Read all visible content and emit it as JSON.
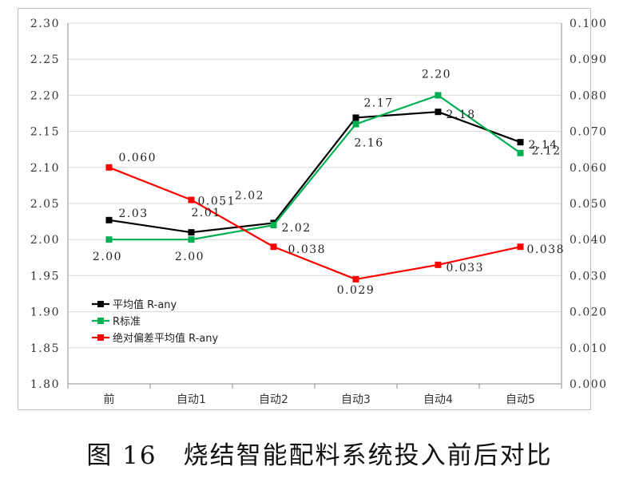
{
  "caption": "图 16　烧结智能配料系统投入前后对比",
  "chart_data": {
    "type": "line",
    "categories": [
      "前",
      "自动1",
      "自动2",
      "自动3",
      "自动4",
      "自动5"
    ],
    "y_left": {
      "min": 1.8,
      "max": 2.3,
      "step": 0.05,
      "decimals": 2,
      "ticks": [
        "1.80",
        "1.85",
        "1.90",
        "1.95",
        "2.00",
        "2.05",
        "2.10",
        "2.15",
        "2.20",
        "2.25",
        "2.30"
      ]
    },
    "y_right": {
      "min": 0.0,
      "max": 0.1,
      "step": 0.01,
      "decimals": 3,
      "ticks": [
        "0.000",
        "0.010",
        "0.020",
        "0.030",
        "0.040",
        "0.050",
        "0.060",
        "0.070",
        "0.080",
        "0.090",
        "0.100"
      ]
    },
    "grid": "horizontal",
    "legend_position": "bottom-left",
    "series": [
      {
        "name": "平均值 R-any",
        "axis": "left",
        "color": "#000000",
        "values": [
          2.027,
          2.01,
          2.023,
          2.169,
          2.177,
          2.135
        ],
        "labels": [
          "2.03",
          "2.01",
          "2.02",
          "2.17",
          "2.18",
          "2.14"
        ]
      },
      {
        "name": "R标准",
        "axis": "left",
        "color": "#00b050",
        "values": [
          2.0,
          2.0,
          2.02,
          2.16,
          2.2,
          2.12
        ],
        "labels": [
          "2.00",
          "2.00",
          "2.02",
          "2.16",
          "2.20",
          "2.12"
        ]
      },
      {
        "name": "绝对偏差平均值 R-any",
        "axis": "right",
        "color": "#ff0000",
        "values": [
          0.06,
          0.051,
          0.038,
          0.029,
          0.033,
          0.038
        ],
        "labels": [
          "0.060",
          "0.051",
          "0.038",
          "0.029",
          "0.033",
          "0.038"
        ]
      }
    ]
  }
}
